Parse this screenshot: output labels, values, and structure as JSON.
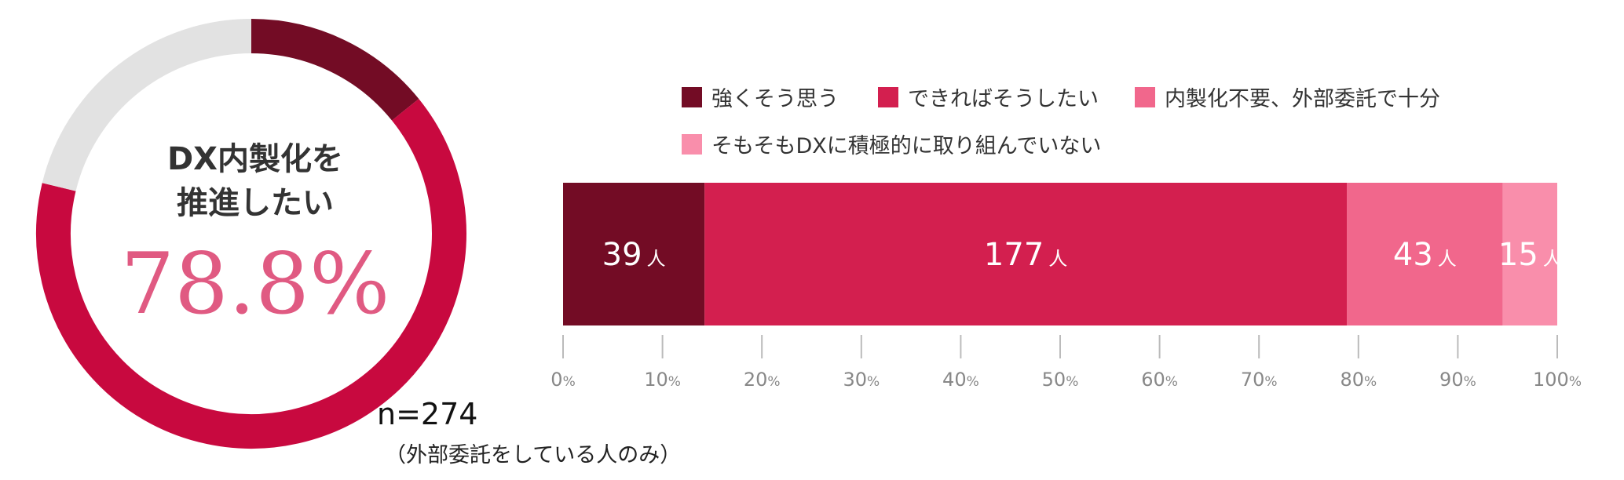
{
  "donut": {
    "title_line1": "DX内製化を",
    "title_line2": "推進したい",
    "percent_label": "78.8%",
    "percent_value": 78.8,
    "colors": {
      "dark": "#730c25",
      "main": "#c8093f",
      "rest": "#e2e2e2"
    }
  },
  "sample": {
    "n_label": "n=274",
    "note": "（外部委託をしている人のみ）"
  },
  "legend": [
    {
      "label": "強くそう思う",
      "color": "#730c25"
    },
    {
      "label": "できればそうしたい",
      "color": "#d31f4f"
    },
    {
      "label": "内製化不要、外部委託で十分",
      "color": "#f1678c"
    },
    {
      "label": "そもそもDXに積極的に取り組んでいない",
      "color": "#f98eab"
    }
  ],
  "chart_data": [
    {
      "type": "pie",
      "title": "DX内製化を推進したい",
      "center_label": "78.8%",
      "slices": [
        {
          "value": 14.2
        },
        {
          "value": 64.6
        },
        {
          "value": 21.2
        }
      ]
    },
    {
      "type": "bar",
      "orientation": "horizontal-stacked",
      "series": [
        {
          "name": "強くそう思う",
          "value": 39,
          "label": "39",
          "unit": "人",
          "color": "#730c25"
        },
        {
          "name": "できればそうしたい",
          "value": 177,
          "label": "177",
          "unit": "人",
          "color": "#d31f4f"
        },
        {
          "name": "内製化不要、外部委託で十分",
          "value": 43,
          "label": "43",
          "unit": "人",
          "color": "#f1678c"
        },
        {
          "name": "そもそもDXに積極的に取り組んでいない",
          "value": 15,
          "label": "15",
          "unit": "人",
          "color": "#f98eab"
        }
      ],
      "total": 274,
      "xlim": [
        0,
        100
      ],
      "ticks": [
        {
          "num": "0",
          "unit": "%"
        },
        {
          "num": "10",
          "unit": "%"
        },
        {
          "num": "20",
          "unit": "%"
        },
        {
          "num": "30",
          "unit": "%"
        },
        {
          "num": "40",
          "unit": "%"
        },
        {
          "num": "50",
          "unit": "%"
        },
        {
          "num": "60",
          "unit": "%"
        },
        {
          "num": "70",
          "unit": "%"
        },
        {
          "num": "80",
          "unit": "%"
        },
        {
          "num": "90",
          "unit": "%"
        },
        {
          "num": "100",
          "unit": "%"
        }
      ],
      "legend_position": "top",
      "grid": false
    }
  ]
}
